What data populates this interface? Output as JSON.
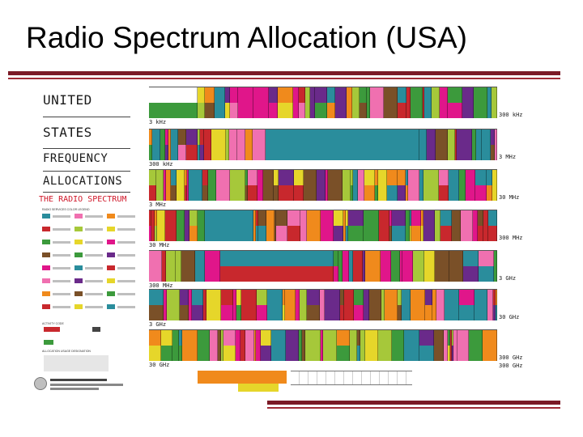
{
  "slide": {
    "title": "Radio Spectrum Allocation (USA)"
  },
  "poster": {
    "heading_lines": [
      "UNITED",
      "STATES",
      "FREQUENCY",
      "ALLOCATIONS"
    ],
    "subheading": "THE RADIO SPECTRUM",
    "legend_titles": [
      "RADIO SERVICES COLOR LEGEND",
      "ACTIVITY CODE",
      "ALLOCATION USAGE DESIGNATION"
    ],
    "band_labels": [
      {
        "left": "3 kHz",
        "right": "300 kHz"
      },
      {
        "left": "300 kHz",
        "right": "3 MHz"
      },
      {
        "left": "3 MHz",
        "right": "30 MHz"
      },
      {
        "left": "30 MHz",
        "right": "300 MHz"
      },
      {
        "left": "300 MHz",
        "right": "3 GHz"
      },
      {
        "left": "3 GHz",
        "right": "30 GHz"
      },
      {
        "left": "30 GHz",
        "right": "300 GHz"
      }
    ],
    "bottom_band_label": "300 GHz",
    "colors": {
      "teal": "#2a8d9c",
      "magenta": "#e0168a",
      "green": "#3c9a3c",
      "red": "#c8282d",
      "orange": "#f08a1c",
      "yellow": "#e6d62a",
      "purple": "#6a2a8a",
      "brown": "#7a5028",
      "lime": "#a6c83a",
      "pink": "#f070b0"
    }
  }
}
